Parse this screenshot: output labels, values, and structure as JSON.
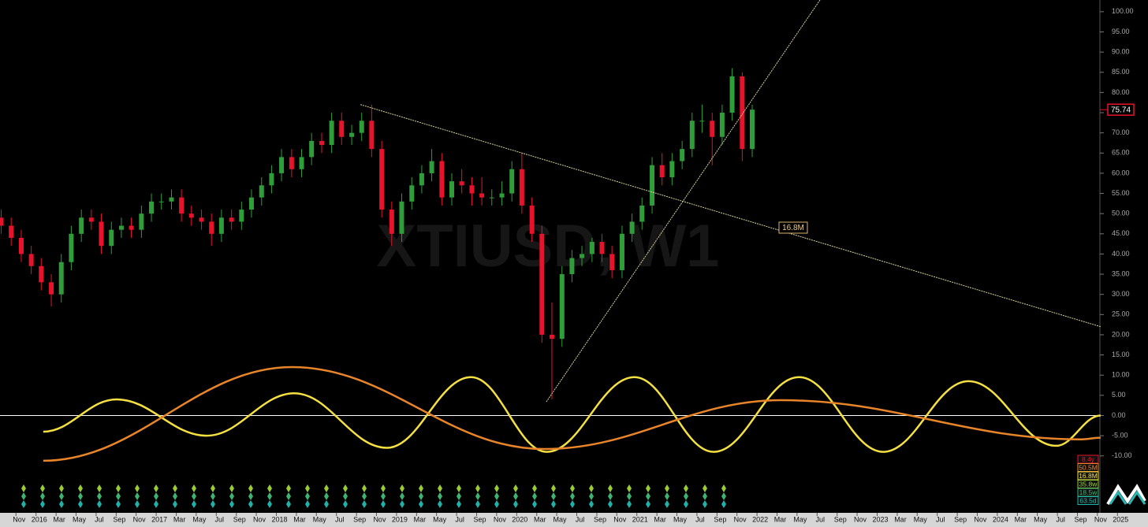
{
  "chart_data": {
    "type": "candlestick",
    "watermark": "XTIUSD, W1",
    "xlim": [
      2015.7,
      2025.254
    ],
    "ylim": [
      -23.9,
      102.9
    ],
    "xticks": [
      {
        "value": 2015.833,
        "label": "Nov"
      },
      2016,
      {
        "value": 2016.167,
        "label": "Mar"
      },
      {
        "value": 2016.333,
        "label": "May"
      },
      {
        "value": 2016.5,
        "label": "Jul"
      },
      {
        "value": 2016.667,
        "label": "Sep"
      },
      {
        "value": 2016.833,
        "label": "Nov"
      },
      2017,
      {
        "value": 2017.167,
        "label": "Mar"
      },
      {
        "value": 2017.333,
        "label": "May"
      },
      {
        "value": 2017.5,
        "label": "Jul"
      },
      {
        "value": 2017.667,
        "label": "Sep"
      },
      {
        "value": 2017.833,
        "label": "Nov"
      },
      2018,
      {
        "value": 2018.167,
        "label": "Mar"
      },
      {
        "value": 2018.333,
        "label": "May"
      },
      {
        "value": 2018.5,
        "label": "Jul"
      },
      {
        "value": 2018.667,
        "label": "Sep"
      },
      {
        "value": 2018.833,
        "label": "Nov"
      },
      2019,
      {
        "value": 2019.167,
        "label": "Mar"
      },
      {
        "value": 2019.333,
        "label": "May"
      },
      {
        "value": 2019.5,
        "label": "Jul"
      },
      {
        "value": 2019.667,
        "label": "Sep"
      },
      {
        "value": 2019.833,
        "label": "Nov"
      },
      2020,
      {
        "value": 2020.167,
        "label": "Mar"
      },
      {
        "value": 2020.333,
        "label": "May"
      },
      {
        "value": 2020.5,
        "label": "Jul"
      },
      {
        "value": 2020.667,
        "label": "Sep"
      },
      {
        "value": 2020.833,
        "label": "Nov"
      },
      2021,
      {
        "value": 2021.167,
        "label": "Mar"
      },
      {
        "value": 2021.333,
        "label": "May"
      },
      {
        "value": 2021.5,
        "label": "Jul"
      },
      {
        "value": 2021.667,
        "label": "Sep"
      },
      {
        "value": 2021.833,
        "label": "Nov"
      },
      2022,
      {
        "value": 2022.167,
        "label": "Mar"
      },
      {
        "value": 2022.333,
        "label": "May"
      },
      {
        "value": 2022.5,
        "label": "Jul"
      },
      {
        "value": 2022.667,
        "label": "Sep"
      },
      {
        "value": 2022.833,
        "label": "Nov"
      },
      2023,
      {
        "value": 2023.167,
        "label": "Mar"
      },
      {
        "value": 2023.333,
        "label": "May"
      },
      {
        "value": 2023.5,
        "label": "Jul"
      },
      {
        "value": 2023.667,
        "label": "Sep"
      },
      {
        "value": 2023.833,
        "label": "Nov"
      },
      2024,
      {
        "value": 2024.167,
        "label": "Mar"
      },
      {
        "value": 2024.333,
        "label": "May"
      },
      {
        "value": 2024.5,
        "label": "Jul"
      },
      {
        "value": 2024.667,
        "label": "Sep"
      },
      {
        "value": 2024.833,
        "label": "Nov"
      },
      2025
    ],
    "yticks": [
      {
        "value": 100,
        "label": "100.00"
      },
      {
        "value": 95,
        "label": "95.00"
      },
      {
        "value": 90,
        "label": "90.00"
      },
      {
        "value": 85,
        "label": "85.00"
      },
      {
        "value": 80,
        "label": "80.00"
      },
      {
        "value": 75,
        "label": "75.00"
      },
      {
        "value": 70,
        "label": "70.00"
      },
      {
        "value": 65,
        "label": "65.00"
      },
      {
        "value": 60,
        "label": "60.00"
      },
      {
        "value": 55,
        "label": "55.00"
      },
      {
        "value": 50,
        "label": "50.00"
      },
      {
        "value": 45,
        "label": "45.00"
      },
      {
        "value": 40,
        "label": "40.00"
      },
      {
        "value": 35,
        "label": "35.00"
      },
      {
        "value": 30,
        "label": "30.00"
      },
      {
        "value": 25,
        "label": "25.00"
      },
      {
        "value": 20,
        "label": "20.00"
      },
      {
        "value": 15,
        "label": "15.00"
      },
      {
        "value": 10,
        "label": "10.00"
      },
      {
        "value": 5,
        "label": "5.00"
      },
      {
        "value": 0,
        "label": "0.00"
      },
      {
        "value": -5,
        "label": "-5.00"
      },
      {
        "value": -10,
        "label": "-10.00"
      }
    ],
    "up_color": "#2f9e3a",
    "down_color": "#e8132b",
    "x": [
      2015.71,
      2015.793,
      2015.877,
      2015.96,
      2016.043,
      2016.127,
      2016.21,
      2016.293,
      2016.377,
      2016.46,
      2016.543,
      2016.627,
      2016.71,
      2016.793,
      2016.877,
      2016.96,
      2017.043,
      2017.127,
      2017.21,
      2017.293,
      2017.377,
      2017.46,
      2017.543,
      2017.627,
      2017.71,
      2017.793,
      2017.877,
      2017.96,
      2018.043,
      2018.127,
      2018.21,
      2018.293,
      2018.377,
      2018.46,
      2018.543,
      2018.627,
      2018.71,
      2018.793,
      2018.877,
      2018.96,
      2019.043,
      2019.127,
      2019.21,
      2019.293,
      2019.377,
      2019.46,
      2019.543,
      2019.627,
      2019.71,
      2019.793,
      2019.877,
      2019.96,
      2020.043,
      2020.127,
      2020.21,
      2020.293,
      2020.377,
      2020.46,
      2020.543,
      2020.627,
      2020.71,
      2020.793,
      2020.877,
      2020.96,
      2021.043,
      2021.127,
      2021.21,
      2021.293,
      2021.377,
      2021.46,
      2021.543,
      2021.627,
      2021.71,
      2021.793,
      2021.877,
      2021.96
    ],
    "open": [
      49,
      47,
      44,
      40,
      37,
      33,
      30,
      38,
      45,
      49,
      48,
      42,
      46,
      47,
      46,
      50,
      53,
      53,
      54,
      50,
      49,
      48,
      45,
      49,
      48,
      51,
      54,
      57,
      60,
      64,
      61,
      64,
      68,
      67,
      73,
      69,
      70,
      73,
      66,
      51,
      45,
      53,
      57,
      60,
      63,
      54,
      58,
      57,
      55,
      54,
      54,
      55,
      61,
      52,
      45,
      20,
      19,
      35,
      39,
      40,
      43,
      40,
      36,
      45,
      48,
      52,
      62,
      59,
      63,
      66,
      73,
      73,
      69,
      75,
      84,
      66
    ],
    "high": [
      51,
      49,
      46,
      42,
      39,
      35,
      40,
      47,
      51,
      51,
      50,
      48,
      49,
      49,
      52,
      55,
      55,
      56,
      56,
      52,
      51,
      50,
      51,
      51,
      53,
      56,
      59,
      62,
      66,
      66,
      66,
      70,
      70,
      75,
      75,
      72,
      75,
      77,
      68,
      53,
      55,
      59,
      62,
      66,
      65,
      60,
      61,
      59,
      59,
      56,
      58,
      63,
      65,
      54,
      47,
      28,
      37,
      41,
      42,
      44,
      45,
      42,
      47,
      50,
      54,
      64,
      65,
      65,
      68,
      75,
      77,
      75,
      77,
      86,
      85,
      77
    ],
    "low": [
      45,
      42,
      38,
      35,
      31,
      27,
      28,
      36,
      43,
      46,
      40,
      40,
      44,
      44,
      44,
      48,
      51,
      51,
      48,
      47,
      46,
      42,
      43,
      46,
      46,
      49,
      52,
      55,
      58,
      59,
      59,
      62,
      65,
      65,
      67,
      67,
      68,
      64,
      49,
      42,
      43,
      51,
      55,
      58,
      52,
      52,
      55,
      52,
      52,
      52,
      52,
      53,
      50,
      43,
      18,
      4,
      17,
      33,
      37,
      38,
      38,
      34,
      34,
      43,
      46,
      50,
      57,
      57,
      61,
      64,
      70,
      62,
      67,
      73,
      63,
      64
    ],
    "close": [
      47,
      44,
      40,
      37,
      33,
      30,
      38,
      45,
      49,
      48,
      42,
      46,
      47,
      46,
      50,
      53,
      53,
      54,
      50,
      49,
      48,
      45,
      49,
      48,
      51,
      54,
      57,
      60,
      64,
      61,
      64,
      68,
      67,
      73,
      69,
      70,
      73,
      66,
      51,
      45,
      53,
      57,
      60,
      63,
      54,
      58,
      57,
      55,
      54,
      54,
      55,
      61,
      52,
      45,
      20,
      19,
      35,
      39,
      40,
      43,
      40,
      36,
      45,
      48,
      52,
      62,
      59,
      63,
      66,
      73,
      73,
      69,
      75,
      84,
      66,
      75.74
    ],
    "last_price": 75.74,
    "last_price_color": "#e8132b",
    "trendlines": [
      {
        "x": [
          2018.7,
          2024.86
        ],
        "values": [
          77,
          22
        ],
        "color": "#d9d49a"
      },
      {
        "x": [
          2020.247,
          2022.524
        ],
        "values": [
          3.4,
          102.9
        ],
        "color": "#d9d49a"
      }
    ],
    "annotation": "16.8M",
    "reference_line": 0,
    "cycles": [
      {
        "name": "16.8M",
        "color": "#f5e043",
        "x": [
          2016.06,
          2016.67,
          2017.42,
          2018.15,
          2018.92,
          2019.62,
          2020.25,
          2020.98,
          2021.64,
          2022.35,
          2023.05,
          2023.76,
          2024.49,
          2024.86
        ],
        "values": [
          -4,
          4,
          -5,
          5.5,
          -8,
          9.5,
          -9,
          9.5,
          -9,
          9.5,
          -9,
          8.5,
          -7.5,
          0
        ]
      },
      {
        "name": "50.5M",
        "color": "#e8852a",
        "x": [
          2016.06,
          2018.13,
          2020.23,
          2022.2,
          2024.69,
          2024.86
        ],
        "values": [
          -11.2,
          12,
          -8.3,
          3.8,
          -5.9,
          -5.5
        ]
      }
    ],
    "cycle_labels": [
      {
        "label": "8.4y",
        "color": "#e8132b"
      },
      {
        "label": "50.5M",
        "color": "#e8852a"
      },
      {
        "label": "16.8M",
        "color": "#f5e043"
      },
      {
        "label": "35.8w",
        "color": "#9acd32"
      },
      {
        "label": "18.5w",
        "color": "#3cb371"
      },
      {
        "label": "63.5d",
        "color": "#20b2aa"
      }
    ]
  }
}
